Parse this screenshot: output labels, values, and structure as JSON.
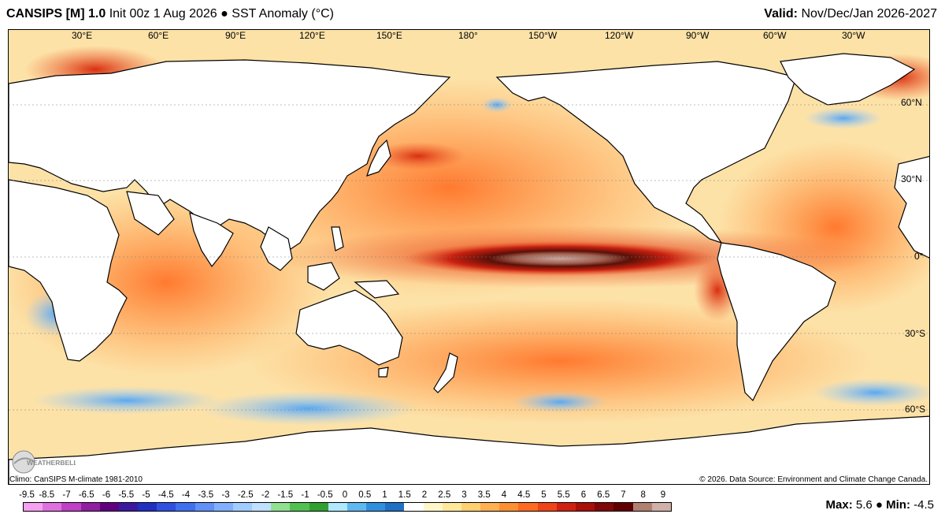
{
  "header": {
    "model": "CANSIPS [M] 1.0",
    "init": "Init 00z 1 Aug 2026",
    "bullet": "●",
    "field": "SST Anomaly (°C)",
    "valid_label": "Valid:",
    "valid_value": "Nov/Dec/Jan 2026-2027"
  },
  "map": {
    "lon_labels": [
      "30°E",
      "60°E",
      "90°E",
      "120°E",
      "150°E",
      "180°",
      "150°W",
      "120°W",
      "90°W",
      "60°W",
      "30°W"
    ],
    "lat_labels": [
      "60°N",
      "30°N",
      "0°",
      "30°S",
      "60°S"
    ],
    "land_color": "#ffffff",
    "ocean_base_color": "#fbe4b0",
    "max_anomaly_color": "#c8a79f",
    "cold_anomaly_color": "#3c8fdc"
  },
  "logo": {
    "text": "WEATHERBELL"
  },
  "footer": {
    "climo": "Climo: CanSIPS M-climate 1981-2010",
    "credit": "© 2026. Data Source: Environment and Climate Change Canada."
  },
  "colorbar": {
    "labels": [
      "-9.5",
      "-8.5",
      "-7",
      "-6.5",
      "-6",
      "-5.5",
      "-5",
      "-4.5",
      "-4",
      "-3.5",
      "-3",
      "-2.5",
      "-2",
      "-1.5",
      "-1",
      "-0.5",
      "0",
      "0.5",
      "1",
      "1.5",
      "2",
      "2.5",
      "3",
      "3.5",
      "4",
      "4.5",
      "5",
      "5.5",
      "6",
      "6.5",
      "7",
      "8",
      "9"
    ],
    "colors": [
      "#f5a0f0",
      "#e070e0",
      "#c040c8",
      "#9020a0",
      "#600080",
      "#3c1aa0",
      "#2030c0",
      "#3050e0",
      "#4070f0",
      "#6090f8",
      "#80b0ff",
      "#a0ccff",
      "#c0e0ff",
      "#90e090",
      "#50c050",
      "#30a030",
      "#b0e8ff",
      "#60b8f0",
      "#3090e0",
      "#2070c8",
      "#ffffff",
      "#fff6c8",
      "#ffe89a",
      "#ffd070",
      "#ffb050",
      "#ff9030",
      "#ff6a20",
      "#f04418",
      "#d02010",
      "#a81008",
      "#800808",
      "#600000",
      "#b08070",
      "#d0b0a8"
    ]
  },
  "stats": {
    "max_label": "Max:",
    "max_value": "5.6",
    "sep": "●",
    "min_label": "Min:",
    "min_value": "-4.5"
  }
}
